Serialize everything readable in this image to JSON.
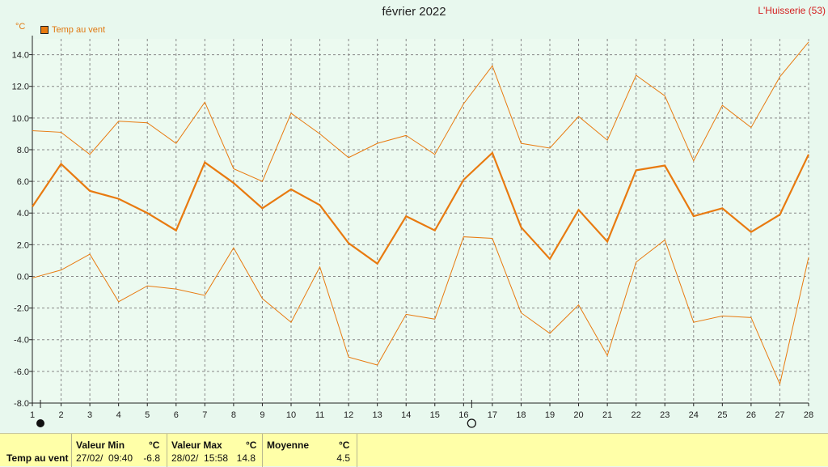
{
  "title": "février 2022",
  "station": "L'Huisserie (53)",
  "colors": {
    "series": "#e87a10",
    "grid": "#888888",
    "station": "#d42020"
  },
  "chart_data": {
    "type": "line",
    "title": "février 2022",
    "ylabel": "°C",
    "ylim": [
      -8,
      15
    ],
    "yticks": [
      "-8.0",
      "-6.0",
      "-4.0",
      "-2.0",
      "0.0",
      "2.0",
      "4.0",
      "6.0",
      "8.0",
      "10.0",
      "12.0",
      "14.0"
    ],
    "x": [
      1,
      2,
      3,
      4,
      5,
      6,
      7,
      8,
      9,
      10,
      11,
      12,
      13,
      14,
      15,
      16,
      17,
      18,
      19,
      20,
      21,
      22,
      23,
      24,
      25,
      26,
      27,
      28
    ],
    "grid": true,
    "legend": "top-left",
    "markers": [
      {
        "x": 1,
        "symbol": "new-moon-icon"
      },
      {
        "x": 16,
        "symbol": "full-moon-icon"
      }
    ],
    "series": [
      {
        "name": "Temp au vent",
        "role": "mean",
        "values": [
          4.4,
          7.1,
          5.4,
          4.9,
          4.0,
          2.9,
          7.2,
          5.9,
          4.3,
          5.5,
          4.5,
          2.1,
          0.8,
          3.8,
          2.9,
          6.1,
          7.8,
          3.1,
          1.1,
          4.2,
          2.2,
          6.7,
          7.0,
          3.8,
          4.3,
          2.8,
          3.9,
          7.7
        ]
      },
      {
        "role": "max",
        "values": [
          9.2,
          9.1,
          7.7,
          9.8,
          9.7,
          8.4,
          11.0,
          6.8,
          6.0,
          10.3,
          9.0,
          7.5,
          8.4,
          8.9,
          7.7,
          10.9,
          13.3,
          8.4,
          8.1,
          10.1,
          8.6,
          12.7,
          11.4,
          7.3,
          10.8,
          9.4,
          12.6,
          14.8
        ]
      },
      {
        "role": "min",
        "values": [
          -0.1,
          0.4,
          1.4,
          -1.6,
          -0.6,
          -0.8,
          -1.2,
          1.8,
          -1.4,
          -2.9,
          0.6,
          -5.1,
          -5.6,
          -2.4,
          -2.7,
          2.5,
          2.4,
          -2.3,
          -3.6,
          -1.8,
          -5.0,
          0.9,
          2.3,
          -2.9,
          -2.5,
          -2.6,
          -6.8,
          1.2
        ]
      }
    ]
  },
  "stats": {
    "row_label": "Temp au vent",
    "min_header": "Valeur Min",
    "min_unit": "°C",
    "min_time": "27/02/  09:40",
    "min_value": "-6.8",
    "max_header": "Valeur Max",
    "max_unit": "°C",
    "max_time": "28/02/  15:58",
    "max_value": "14.8",
    "avg_header": "Moyenne",
    "avg_unit": "°C",
    "avg_value": "4.5"
  }
}
